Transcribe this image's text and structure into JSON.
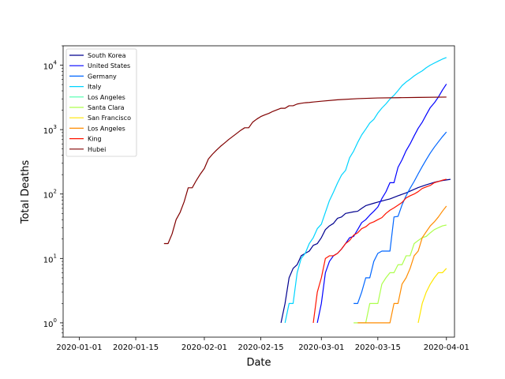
{
  "chart_data": {
    "type": "line",
    "xlabel": "Date",
    "ylabel": "Total Deaths",
    "yscale": "log",
    "xlim": [
      "2019-12-28",
      "2020-04-03"
    ],
    "ylim": [
      0.6,
      20000
    ],
    "x_ticks": [
      "2020-01-01",
      "2020-01-15",
      "2020-02-01",
      "2020-02-15",
      "2020-03-01",
      "2020-03-15",
      "2020-04-01"
    ],
    "y_ticks": [
      1,
      10,
      100,
      1000,
      10000
    ],
    "y_tick_labels": [
      {
        "base": "10",
        "exp": "0"
      },
      {
        "base": "10",
        "exp": "1"
      },
      {
        "base": "10",
        "exp": "2"
      },
      {
        "base": "10",
        "exp": "3"
      },
      {
        "base": "10",
        "exp": "4"
      }
    ],
    "grid": false,
    "legend_position": "upper-left",
    "series": [
      {
        "name": "South Korea",
        "color": "#00008f",
        "points": [
          [
            "2020-02-20",
            1
          ],
          [
            "2020-02-21",
            2
          ],
          [
            "2020-02-22",
            5
          ],
          [
            "2020-02-23",
            7
          ],
          [
            "2020-02-24",
            8
          ],
          [
            "2020-02-25",
            11
          ],
          [
            "2020-02-26",
            12
          ],
          [
            "2020-02-27",
            13
          ],
          [
            "2020-02-28",
            16
          ],
          [
            "2020-02-29",
            17
          ],
          [
            "2020-03-01",
            21
          ],
          [
            "2020-03-02",
            28
          ],
          [
            "2020-03-03",
            32
          ],
          [
            "2020-03-04",
            35
          ],
          [
            "2020-03-05",
            42
          ],
          [
            "2020-03-06",
            44
          ],
          [
            "2020-03-07",
            50
          ],
          [
            "2020-03-09",
            53
          ],
          [
            "2020-03-10",
            54
          ],
          [
            "2020-03-11",
            60
          ],
          [
            "2020-03-12",
            66
          ],
          [
            "2020-03-14",
            72
          ],
          [
            "2020-03-15",
            75
          ],
          [
            "2020-03-17",
            81
          ],
          [
            "2020-03-18",
            84
          ],
          [
            "2020-03-20",
            94
          ],
          [
            "2020-03-22",
            104
          ],
          [
            "2020-03-23",
            111
          ],
          [
            "2020-03-25",
            126
          ],
          [
            "2020-03-27",
            139
          ],
          [
            "2020-03-29",
            152
          ],
          [
            "2020-03-31",
            162
          ],
          [
            "2020-04-02",
            169
          ]
        ]
      },
      {
        "name": "United States",
        "color": "#0000ff",
        "points": [
          [
            "2020-02-29",
            1
          ],
          [
            "2020-03-01",
            2
          ],
          [
            "2020-03-02",
            6
          ],
          [
            "2020-03-03",
            9
          ],
          [
            "2020-03-04",
            11
          ],
          [
            "2020-03-05",
            12
          ],
          [
            "2020-03-06",
            14
          ],
          [
            "2020-03-07",
            17
          ],
          [
            "2020-03-08",
            21
          ],
          [
            "2020-03-09",
            22
          ],
          [
            "2020-03-10",
            28
          ],
          [
            "2020-03-11",
            36
          ],
          [
            "2020-03-12",
            40
          ],
          [
            "2020-03-13",
            47
          ],
          [
            "2020-03-14",
            54
          ],
          [
            "2020-03-15",
            63
          ],
          [
            "2020-03-16",
            85
          ],
          [
            "2020-03-17",
            108
          ],
          [
            "2020-03-18",
            150
          ],
          [
            "2020-03-19",
            150
          ],
          [
            "2020-03-20",
            260
          ],
          [
            "2020-03-21",
            340
          ],
          [
            "2020-03-22",
            470
          ],
          [
            "2020-03-23",
            600
          ],
          [
            "2020-03-24",
            800
          ],
          [
            "2020-03-25",
            1050
          ],
          [
            "2020-03-26",
            1300
          ],
          [
            "2020-03-27",
            1700
          ],
          [
            "2020-03-28",
            2200
          ],
          [
            "2020-03-29",
            2600
          ],
          [
            "2020-03-30",
            3200
          ],
          [
            "2020-03-31",
            4100
          ],
          [
            "2020-04-01",
            5100
          ]
        ]
      },
      {
        "name": "Germany",
        "color": "#0066ff",
        "points": [
          [
            "2020-03-09",
            2
          ],
          [
            "2020-03-10",
            2
          ],
          [
            "2020-03-11",
            3
          ],
          [
            "2020-03-12",
            5
          ],
          [
            "2020-03-13",
            5
          ],
          [
            "2020-03-14",
            9
          ],
          [
            "2020-03-15",
            12
          ],
          [
            "2020-03-16",
            13
          ],
          [
            "2020-03-17",
            13
          ],
          [
            "2020-03-18",
            13
          ],
          [
            "2020-03-19",
            44
          ],
          [
            "2020-03-20",
            45
          ],
          [
            "2020-03-21",
            68
          ],
          [
            "2020-03-22",
            94
          ],
          [
            "2020-03-23",
            123
          ],
          [
            "2020-03-24",
            157
          ],
          [
            "2020-03-25",
            206
          ],
          [
            "2020-03-26",
            267
          ],
          [
            "2020-03-27",
            342
          ],
          [
            "2020-03-28",
            433
          ],
          [
            "2020-03-29",
            533
          ],
          [
            "2020-03-30",
            645
          ],
          [
            "2020-03-31",
            775
          ],
          [
            "2020-04-01",
            920
          ]
        ]
      },
      {
        "name": "Italy",
        "color": "#00d4ff",
        "points": [
          [
            "2020-02-21",
            1
          ],
          [
            "2020-02-22",
            2
          ],
          [
            "2020-02-23",
            2
          ],
          [
            "2020-02-24",
            6
          ],
          [
            "2020-02-25",
            10
          ],
          [
            "2020-02-26",
            12
          ],
          [
            "2020-02-27",
            17
          ],
          [
            "2020-02-28",
            21
          ],
          [
            "2020-02-29",
            29
          ],
          [
            "2020-03-01",
            34
          ],
          [
            "2020-03-02",
            52
          ],
          [
            "2020-03-03",
            79
          ],
          [
            "2020-03-04",
            107
          ],
          [
            "2020-03-05",
            148
          ],
          [
            "2020-03-06",
            197
          ],
          [
            "2020-03-07",
            233
          ],
          [
            "2020-03-08",
            366
          ],
          [
            "2020-03-09",
            463
          ],
          [
            "2020-03-10",
            631
          ],
          [
            "2020-03-11",
            827
          ],
          [
            "2020-03-12",
            1016
          ],
          [
            "2020-03-13",
            1266
          ],
          [
            "2020-03-14",
            1441
          ],
          [
            "2020-03-15",
            1809
          ],
          [
            "2020-03-16",
            2158
          ],
          [
            "2020-03-17",
            2503
          ],
          [
            "2020-03-18",
            2978
          ],
          [
            "2020-03-19",
            3405
          ],
          [
            "2020-03-20",
            4032
          ],
          [
            "2020-03-21",
            4825
          ],
          [
            "2020-03-22",
            5476
          ],
          [
            "2020-03-23",
            6077
          ],
          [
            "2020-03-24",
            6820
          ],
          [
            "2020-03-25",
            7503
          ],
          [
            "2020-03-26",
            8165
          ],
          [
            "2020-03-27",
            9134
          ],
          [
            "2020-03-28",
            10023
          ],
          [
            "2020-03-29",
            10779
          ],
          [
            "2020-03-30",
            11591
          ],
          [
            "2020-03-31",
            12428
          ],
          [
            "2020-04-01",
            13155
          ]
        ]
      },
      {
        "name": "Los Angeles",
        "color": "#4dffad",
        "points": []
      },
      {
        "name": "Santa Clara",
        "color": "#adff4d",
        "points": [
          [
            "2020-03-09",
            1
          ],
          [
            "2020-03-10",
            1
          ],
          [
            "2020-03-11",
            1
          ],
          [
            "2020-03-12",
            1
          ],
          [
            "2020-03-13",
            2
          ],
          [
            "2020-03-14",
            2
          ],
          [
            "2020-03-15",
            2
          ],
          [
            "2020-03-16",
            4
          ],
          [
            "2020-03-17",
            5
          ],
          [
            "2020-03-18",
            6
          ],
          [
            "2020-03-19",
            6
          ],
          [
            "2020-03-20",
            8
          ],
          [
            "2020-03-21",
            8
          ],
          [
            "2020-03-22",
            11
          ],
          [
            "2020-03-23",
            11
          ],
          [
            "2020-03-24",
            17
          ],
          [
            "2020-03-25",
            19
          ],
          [
            "2020-03-26",
            21
          ],
          [
            "2020-03-27",
            22
          ],
          [
            "2020-03-28",
            25
          ],
          [
            "2020-03-29",
            28
          ],
          [
            "2020-03-30",
            30
          ],
          [
            "2020-03-31",
            32
          ],
          [
            "2020-04-01",
            33
          ]
        ]
      },
      {
        "name": "San Francisco",
        "color": "#ffe600",
        "points": [
          [
            "2020-03-25",
            1
          ],
          [
            "2020-03-26",
            2
          ],
          [
            "2020-03-27",
            3
          ],
          [
            "2020-03-28",
            4
          ],
          [
            "2020-03-29",
            5
          ],
          [
            "2020-03-30",
            6
          ],
          [
            "2020-03-31",
            6
          ],
          [
            "2020-04-01",
            7
          ]
        ]
      },
      {
        "name": "Los Angeles",
        "color": "#ff8c00",
        "points": [
          [
            "2020-03-10",
            1
          ],
          [
            "2020-03-11",
            1
          ],
          [
            "2020-03-12",
            1
          ],
          [
            "2020-03-13",
            1
          ],
          [
            "2020-03-14",
            1
          ],
          [
            "2020-03-15",
            1
          ],
          [
            "2020-03-16",
            1
          ],
          [
            "2020-03-17",
            1
          ],
          [
            "2020-03-18",
            1
          ],
          [
            "2020-03-19",
            2
          ],
          [
            "2020-03-20",
            2
          ],
          [
            "2020-03-21",
            4
          ],
          [
            "2020-03-22",
            5
          ],
          [
            "2020-03-23",
            7
          ],
          [
            "2020-03-24",
            11
          ],
          [
            "2020-03-25",
            13
          ],
          [
            "2020-03-26",
            21
          ],
          [
            "2020-03-27",
            26
          ],
          [
            "2020-03-28",
            32
          ],
          [
            "2020-03-29",
            37
          ],
          [
            "2020-03-30",
            44
          ],
          [
            "2020-03-31",
            54
          ],
          [
            "2020-04-01",
            65
          ]
        ]
      },
      {
        "name": "King",
        "color": "#ff1300",
        "points": [
          [
            "2020-02-28",
            1
          ],
          [
            "2020-02-29",
            3
          ],
          [
            "2020-03-01",
            5
          ],
          [
            "2020-03-02",
            10
          ],
          [
            "2020-03-03",
            11
          ],
          [
            "2020-03-04",
            11
          ],
          [
            "2020-03-05",
            12
          ],
          [
            "2020-03-06",
            14
          ],
          [
            "2020-03-07",
            17
          ],
          [
            "2020-03-08",
            19
          ],
          [
            "2020-03-09",
            23
          ],
          [
            "2020-03-10",
            25
          ],
          [
            "2020-03-11",
            29
          ],
          [
            "2020-03-12",
            31
          ],
          [
            "2020-03-13",
            35
          ],
          [
            "2020-03-14",
            37
          ],
          [
            "2020-03-15",
            40
          ],
          [
            "2020-03-16",
            43
          ],
          [
            "2020-03-17",
            50
          ],
          [
            "2020-03-18",
            56
          ],
          [
            "2020-03-19",
            61
          ],
          [
            "2020-03-20",
            67
          ],
          [
            "2020-03-21",
            74
          ],
          [
            "2020-03-22",
            87
          ],
          [
            "2020-03-23",
            94
          ],
          [
            "2020-03-24",
            100
          ],
          [
            "2020-03-25",
            109
          ],
          [
            "2020-03-26",
            122
          ],
          [
            "2020-03-27",
            129
          ],
          [
            "2020-03-28",
            136
          ],
          [
            "2020-03-29",
            150
          ],
          [
            "2020-03-30",
            156
          ],
          [
            "2020-03-31",
            164
          ],
          [
            "2020-04-01",
            170
          ]
        ]
      },
      {
        "name": "Hubei",
        "color": "#800000",
        "points": [
          [
            "2020-01-22",
            17
          ],
          [
            "2020-01-23",
            17
          ],
          [
            "2020-01-24",
            24
          ],
          [
            "2020-01-25",
            40
          ],
          [
            "2020-01-26",
            52
          ],
          [
            "2020-01-27",
            76
          ],
          [
            "2020-01-28",
            125
          ],
          [
            "2020-01-29",
            125
          ],
          [
            "2020-01-30",
            162
          ],
          [
            "2020-01-31",
            204
          ],
          [
            "2020-02-01",
            249
          ],
          [
            "2020-02-02",
            350
          ],
          [
            "2020-02-03",
            414
          ],
          [
            "2020-02-04",
            479
          ],
          [
            "2020-02-05",
            549
          ],
          [
            "2020-02-06",
            618
          ],
          [
            "2020-02-07",
            699
          ],
          [
            "2020-02-08",
            780
          ],
          [
            "2020-02-09",
            871
          ],
          [
            "2020-02-10",
            974
          ],
          [
            "2020-02-11",
            1068
          ],
          [
            "2020-02-12",
            1068
          ],
          [
            "2020-02-13",
            1310
          ],
          [
            "2020-02-14",
            1457
          ],
          [
            "2020-02-15",
            1596
          ],
          [
            "2020-02-16",
            1696
          ],
          [
            "2020-02-17",
            1789
          ],
          [
            "2020-02-18",
            1921
          ],
          [
            "2020-02-19",
            2029
          ],
          [
            "2020-02-20",
            2144
          ],
          [
            "2020-02-21",
            2144
          ],
          [
            "2020-02-22",
            2346
          ],
          [
            "2020-02-23",
            2346
          ],
          [
            "2020-02-24",
            2495
          ],
          [
            "2020-02-25",
            2563
          ],
          [
            "2020-02-26",
            2615
          ],
          [
            "2020-02-27",
            2641
          ],
          [
            "2020-02-28",
            2682
          ],
          [
            "2020-03-01",
            2761
          ],
          [
            "2020-03-05",
            2902
          ],
          [
            "2020-03-10",
            3024
          ],
          [
            "2020-03-15",
            3099
          ],
          [
            "2020-03-20",
            3130
          ],
          [
            "2020-03-25",
            3160
          ],
          [
            "2020-04-01",
            3199
          ]
        ]
      }
    ]
  }
}
